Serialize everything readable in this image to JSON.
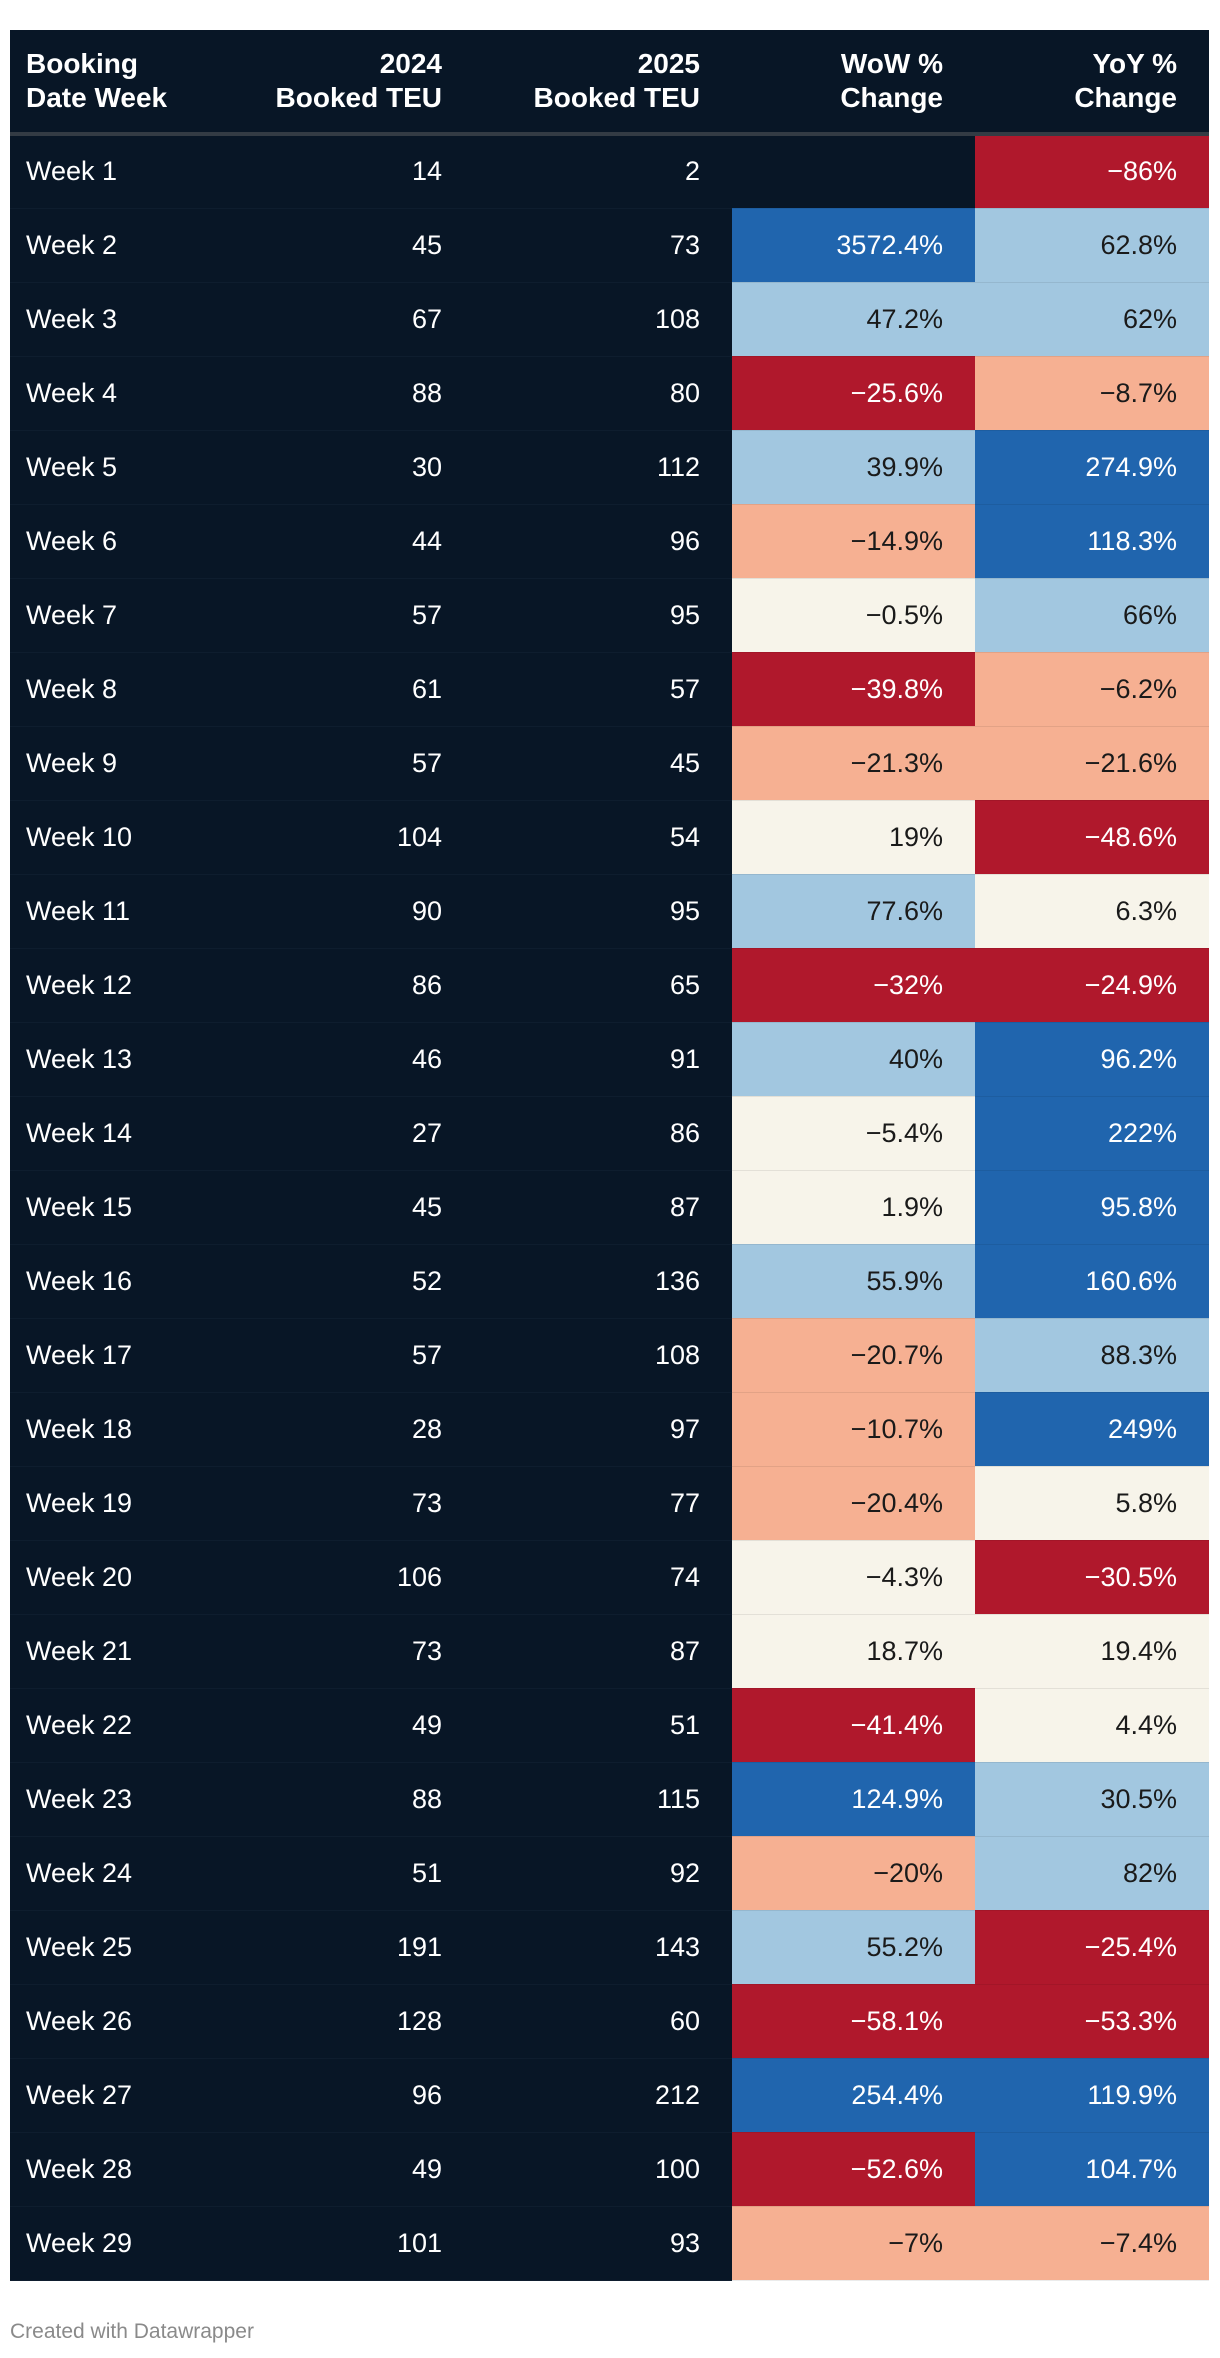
{
  "chart_data": {
    "type": "table",
    "columns": [
      "Booking Date Week",
      "2024 Booked TEU",
      "2025 Booked TEU",
      "WoW % Change",
      "YoY % Change"
    ],
    "header_lines": [
      [
        "Booking",
        "Date Week"
      ],
      [
        "2024",
        "Booked TEU"
      ],
      [
        "2025",
        "Booked TEU"
      ],
      [
        "WoW %",
        "Change"
      ],
      [
        "YoY %",
        "Change"
      ]
    ],
    "rows": [
      {
        "week": "Week 1",
        "teu_2024": "14",
        "teu_2025": "2",
        "wow": "",
        "yoy": "−86%"
      },
      {
        "week": "Week 2",
        "teu_2024": "45",
        "teu_2025": "73",
        "wow": "3572.4%",
        "yoy": "62.8%"
      },
      {
        "week": "Week 3",
        "teu_2024": "67",
        "teu_2025": "108",
        "wow": "47.2%",
        "yoy": "62%"
      },
      {
        "week": "Week 4",
        "teu_2024": "88",
        "teu_2025": "80",
        "wow": "−25.6%",
        "yoy": "−8.7%"
      },
      {
        "week": "Week 5",
        "teu_2024": "30",
        "teu_2025": "112",
        "wow": "39.9%",
        "yoy": "274.9%"
      },
      {
        "week": "Week 6",
        "teu_2024": "44",
        "teu_2025": "96",
        "wow": "−14.9%",
        "yoy": "118.3%"
      },
      {
        "week": "Week 7",
        "teu_2024": "57",
        "teu_2025": "95",
        "wow": "−0.5%",
        "yoy": "66%"
      },
      {
        "week": "Week 8",
        "teu_2024": "61",
        "teu_2025": "57",
        "wow": "−39.8%",
        "yoy": "−6.2%"
      },
      {
        "week": "Week 9",
        "teu_2024": "57",
        "teu_2025": "45",
        "wow": "−21.3%",
        "yoy": "−21.6%"
      },
      {
        "week": "Week 10",
        "teu_2024": "104",
        "teu_2025": "54",
        "wow": "19%",
        "yoy": "−48.6%"
      },
      {
        "week": "Week 11",
        "teu_2024": "90",
        "teu_2025": "95",
        "wow": "77.6%",
        "yoy": "6.3%"
      },
      {
        "week": "Week 12",
        "teu_2024": "86",
        "teu_2025": "65",
        "wow": "−32%",
        "yoy": "−24.9%"
      },
      {
        "week": "Week 13",
        "teu_2024": "46",
        "teu_2025": "91",
        "wow": "40%",
        "yoy": "96.2%"
      },
      {
        "week": "Week 14",
        "teu_2024": "27",
        "teu_2025": "86",
        "wow": "−5.4%",
        "yoy": "222%"
      },
      {
        "week": "Week 15",
        "teu_2024": "45",
        "teu_2025": "87",
        "wow": "1.9%",
        "yoy": "95.8%"
      },
      {
        "week": "Week 16",
        "teu_2024": "52",
        "teu_2025": "136",
        "wow": "55.9%",
        "yoy": "160.6%"
      },
      {
        "week": "Week 17",
        "teu_2024": "57",
        "teu_2025": "108",
        "wow": "−20.7%",
        "yoy": "88.3%"
      },
      {
        "week": "Week 18",
        "teu_2024": "28",
        "teu_2025": "97",
        "wow": "−10.7%",
        "yoy": "249%"
      },
      {
        "week": "Week 19",
        "teu_2024": "73",
        "teu_2025": "77",
        "wow": "−20.4%",
        "yoy": "5.8%"
      },
      {
        "week": "Week 20",
        "teu_2024": "106",
        "teu_2025": "74",
        "wow": "−4.3%",
        "yoy": "−30.5%"
      },
      {
        "week": "Week 21",
        "teu_2024": "73",
        "teu_2025": "87",
        "wow": "18.7%",
        "yoy": "19.4%"
      },
      {
        "week": "Week 22",
        "teu_2024": "49",
        "teu_2025": "51",
        "wow": "−41.4%",
        "yoy": "4.4%"
      },
      {
        "week": "Week 23",
        "teu_2024": "88",
        "teu_2025": "115",
        "wow": "124.9%",
        "yoy": "30.5%"
      },
      {
        "week": "Week 24",
        "teu_2024": "51",
        "teu_2025": "92",
        "wow": "−20%",
        "yoy": "82%"
      },
      {
        "week": "Week 25",
        "teu_2024": "191",
        "teu_2025": "143",
        "wow": "55.2%",
        "yoy": "−25.4%"
      },
      {
        "week": "Week 26",
        "teu_2024": "128",
        "teu_2025": "60",
        "wow": "−58.1%",
        "yoy": "−53.3%"
      },
      {
        "week": "Week 27",
        "teu_2024": "96",
        "teu_2025": "212",
        "wow": "254.4%",
        "yoy": "119.9%"
      },
      {
        "week": "Week 28",
        "teu_2024": "49",
        "teu_2025": "100",
        "wow": "−52.6%",
        "yoy": "104.7%"
      },
      {
        "week": "Week 29",
        "teu_2024": "101",
        "teu_2025": "93",
        "wow": "−7%",
        "yoy": "−7.4%"
      }
    ]
  },
  "colors": {
    "table_bg": "#081626",
    "strong_negative": "#b0182c",
    "negative": "#f6b092",
    "neutral": "#f7f4ea",
    "positive": "#a2c7e0",
    "strong_positive": "#2065ae",
    "text_light": "#ffffff",
    "text_dark": "#1a1a1a"
  },
  "footer": {
    "credit": "Created with Datawrapper"
  }
}
